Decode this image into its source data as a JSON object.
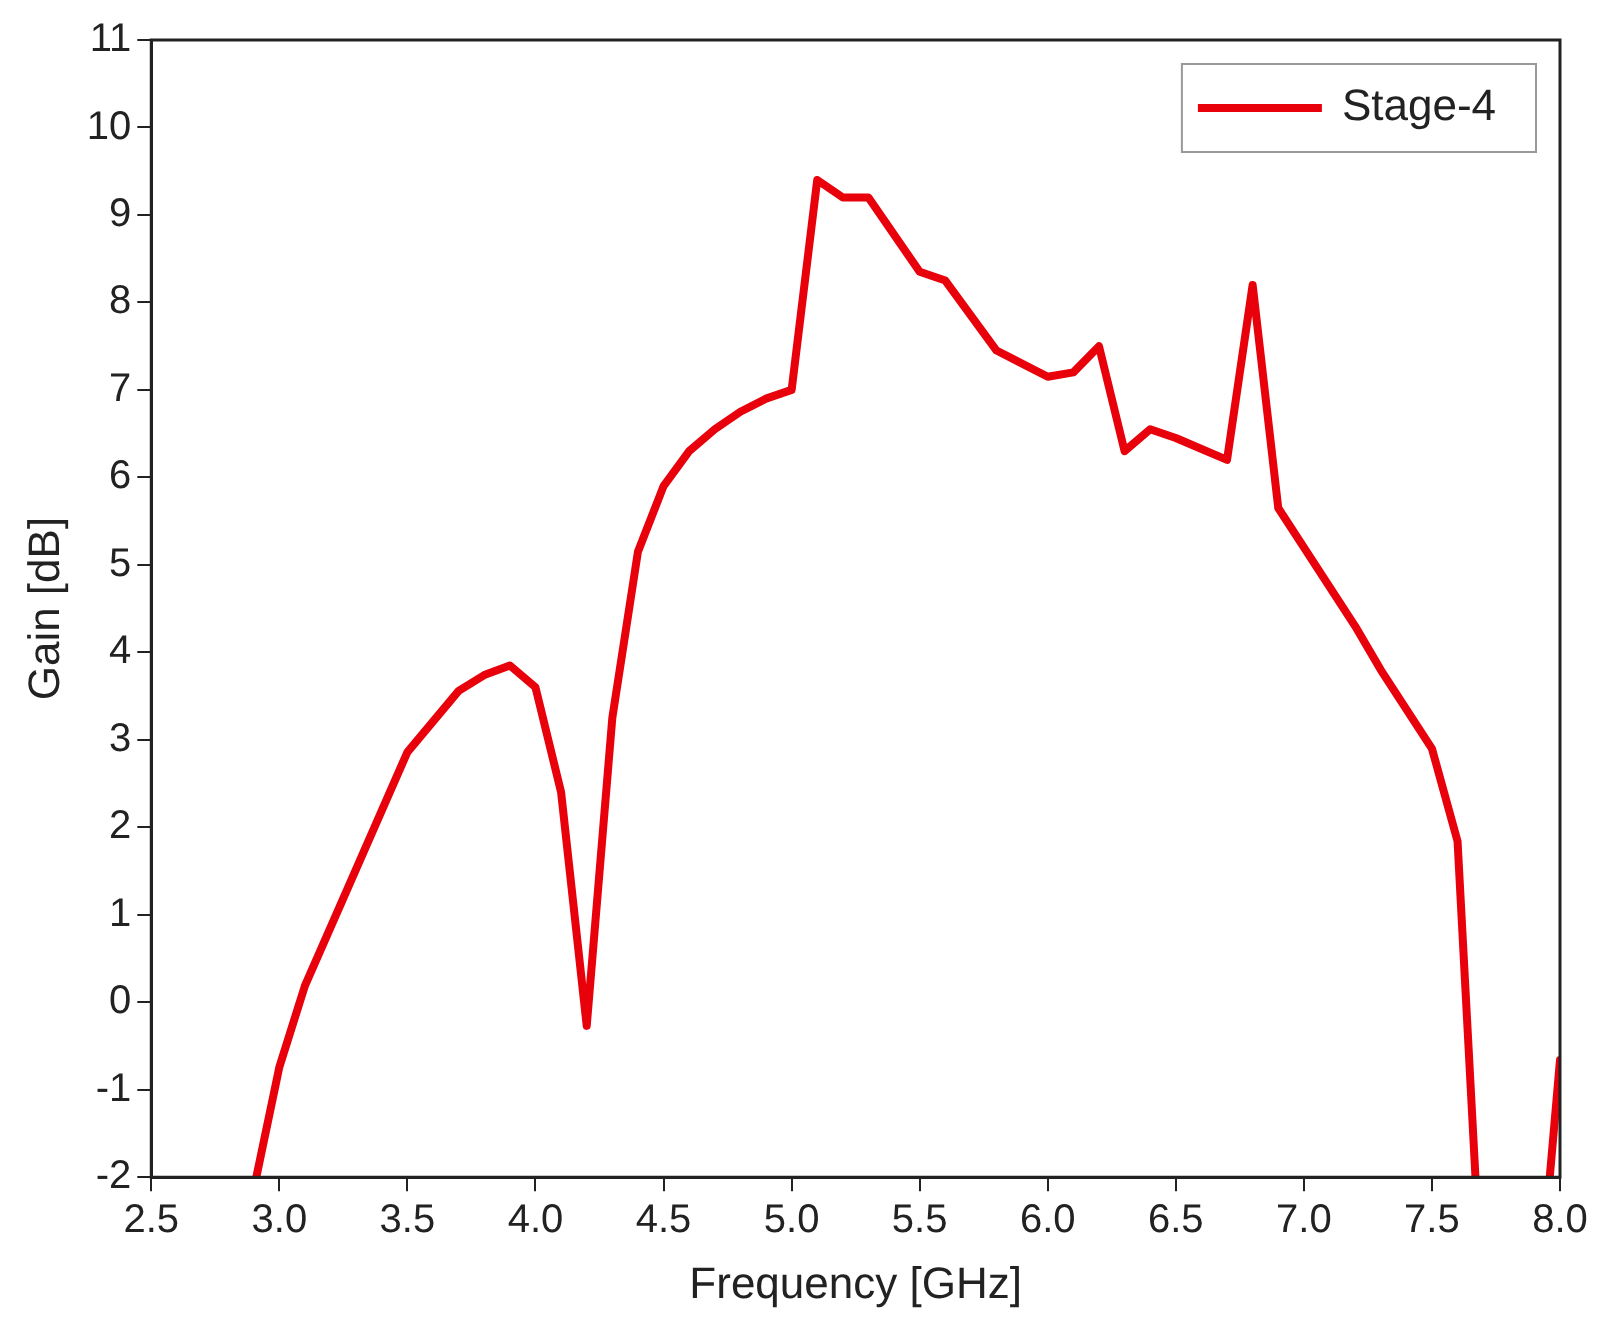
{
  "chart_data": {
    "type": "line",
    "xlabel": "Frequency [GHz]",
    "ylabel": "Gain [dB]",
    "series": [
      {
        "name": "Stage-4",
        "color": "#e8000b",
        "x": [
          2.91,
          3.0,
          3.1,
          3.25,
          3.5,
          3.7,
          3.8,
          3.9,
          4.0,
          4.1,
          4.2,
          4.3,
          4.4,
          4.5,
          4.6,
          4.7,
          4.8,
          4.9,
          5.0,
          5.1,
          5.2,
          5.3,
          5.5,
          5.6,
          5.8,
          6.0,
          6.1,
          6.2,
          6.3,
          6.4,
          6.5,
          6.7,
          6.8,
          6.9,
          7.0,
          7.2,
          7.3,
          7.5,
          7.6,
          7.67,
          7.8,
          7.96,
          8.0
        ],
        "values": [
          -2,
          -0.74,
          0.19,
          1.19,
          2.86,
          3.56,
          3.74,
          3.85,
          3.6,
          2.4,
          -0.27,
          3.25,
          5.15,
          5.9,
          6.3,
          6.55,
          6.75,
          6.9,
          7.0,
          9.4,
          9.2,
          9.2,
          8.35,
          8.25,
          7.45,
          7.15,
          7.2,
          7.5,
          6.3,
          6.55,
          6.45,
          6.2,
          8.2,
          5.65,
          5.2,
          4.3,
          3.8,
          2.9,
          1.84,
          -2,
          null,
          -2,
          -0.66
        ]
      }
    ],
    "xlim": [
      2.5,
      8.0
    ],
    "xticks": [
      {
        "value": 2.5,
        "label": "2.5"
      },
      {
        "value": 3,
        "label": "3.0"
      },
      {
        "value": 3.5,
        "label": "3.5"
      },
      {
        "value": 4,
        "label": "4.0"
      },
      {
        "value": 4.5,
        "label": "4.5"
      },
      {
        "value": 5,
        "label": "5.0"
      },
      {
        "value": 5.5,
        "label": "5.5"
      },
      {
        "value": 6,
        "label": "6.0"
      },
      {
        "value": 6.5,
        "label": "6.5"
      },
      {
        "value": 7,
        "label": "7.0"
      },
      {
        "value": 7.5,
        "label": "7.5"
      },
      {
        "value": 8,
        "label": "8.0"
      }
    ],
    "ylim": [
      -2,
      11
    ],
    "yticks": [
      -2,
      -1,
      0,
      1,
      2,
      3,
      4,
      5,
      6,
      7,
      8,
      9,
      10,
      11
    ],
    "grid": false,
    "legend": "top right",
    "marker": "none",
    "line_style": "solid"
  }
}
